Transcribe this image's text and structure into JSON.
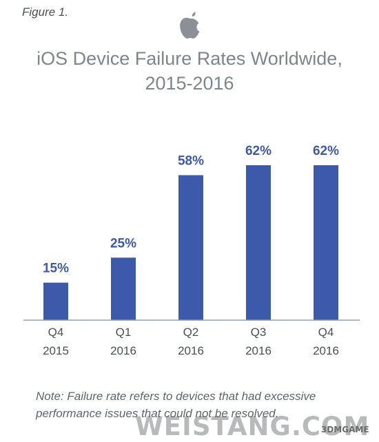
{
  "figure_label": "Figure 1.",
  "title_line1": "iOS Device Failure Rates Worldwide,",
  "title_line2": "2015-2016",
  "note": "Note: Failure rate refers to devices that had excessive performance issues that could not be resolved.",
  "watermark": "WEISTANG.COM",
  "watermark_small": "3DMGAME",
  "colors": {
    "bar": "#3c5aa9",
    "axis": "#9a9ea3"
  },
  "chart_data": {
    "type": "bar",
    "title": "iOS Device Failure Rates Worldwide, 2015-2016",
    "categories": [
      "Q4 2015",
      "Q1 2016",
      "Q2 2016",
      "Q3 2016",
      "Q4 2016"
    ],
    "category_lines": [
      [
        "Q4",
        "2015"
      ],
      [
        "Q1",
        "2016"
      ],
      [
        "Q2",
        "2016"
      ],
      [
        "Q3",
        "2016"
      ],
      [
        "Q4",
        "2016"
      ]
    ],
    "values": [
      15,
      25,
      58,
      62,
      62
    ],
    "data_labels": [
      "15%",
      "25%",
      "58%",
      "62%",
      "62%"
    ],
    "ylim": [
      0,
      100
    ],
    "grid": false,
    "legend": "none"
  }
}
